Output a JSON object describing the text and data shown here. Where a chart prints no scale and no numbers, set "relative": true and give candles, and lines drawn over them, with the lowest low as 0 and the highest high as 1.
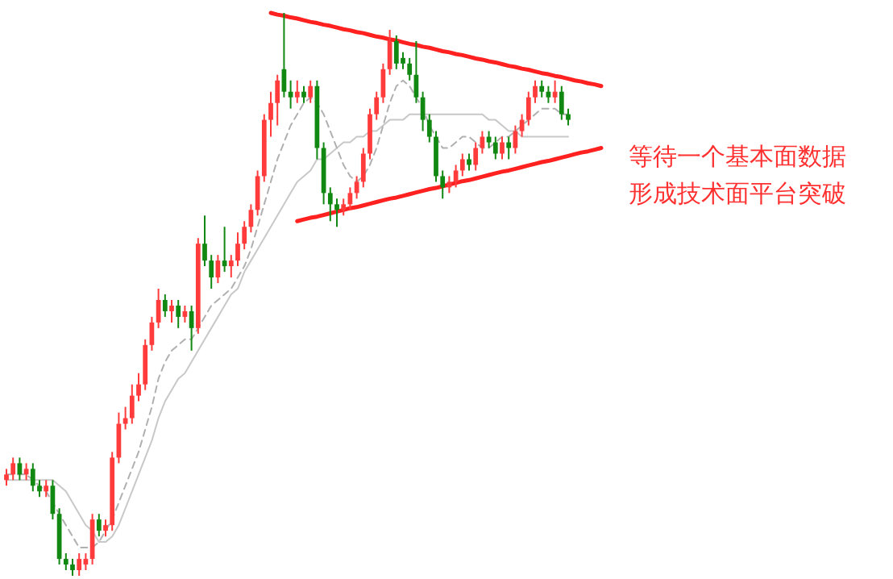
{
  "chart_data": {
    "type": "candlestick",
    "relative": true,
    "categories": [
      null,
      null,
      null,
      null,
      null,
      null,
      null,
      null,
      null,
      null,
      null,
      null,
      null,
      null,
      null,
      null,
      null,
      null,
      null,
      null,
      null,
      null,
      null,
      null,
      null,
      null,
      null,
      null,
      null,
      null,
      null,
      null,
      null,
      null,
      null,
      null,
      null,
      null,
      null,
      null,
      null,
      null,
      null,
      null,
      null,
      null,
      null,
      null,
      null,
      null,
      null,
      null,
      null,
      null,
      null,
      null,
      null,
      null,
      null,
      null,
      null,
      null,
      null,
      null,
      null,
      null,
      null,
      null,
      null,
      null,
      null,
      null,
      null,
      null,
      null,
      null,
      null,
      null,
      null,
      null,
      null,
      null,
      null,
      null,
      null,
      null,
      null,
      null,
      null,
      null,
      null
    ],
    "ohlc": [
      [
        0.17,
        0.19,
        0.16,
        0.18
      ],
      [
        0.18,
        0.21,
        0.17,
        0.2
      ],
      [
        0.2,
        0.21,
        0.17,
        0.18
      ],
      [
        0.18,
        0.2,
        0.17,
        0.19
      ],
      [
        0.19,
        0.2,
        0.15,
        0.16
      ],
      [
        0.16,
        0.17,
        0.14,
        0.15
      ],
      [
        0.15,
        0.17,
        0.14,
        0.16
      ],
      [
        0.16,
        0.17,
        0.1,
        0.11
      ],
      [
        0.11,
        0.12,
        0.02,
        0.03
      ],
      [
        0.03,
        0.04,
        0.01,
        0.02
      ],
      [
        0.02,
        0.03,
        0.0,
        0.01
      ],
      [
        0.01,
        0.04,
        0.0,
        0.03
      ],
      [
        0.02,
        0.04,
        0.01,
        0.03
      ],
      [
        0.03,
        0.11,
        0.02,
        0.1
      ],
      [
        0.1,
        0.11,
        0.07,
        0.08
      ],
      [
        0.08,
        0.1,
        0.07,
        0.09
      ],
      [
        0.09,
        0.22,
        0.08,
        0.21
      ],
      [
        0.21,
        0.29,
        0.2,
        0.27
      ],
      [
        0.27,
        0.3,
        0.26,
        0.28
      ],
      [
        0.28,
        0.34,
        0.27,
        0.32
      ],
      [
        0.32,
        0.36,
        0.31,
        0.34
      ],
      [
        0.34,
        0.42,
        0.33,
        0.41
      ],
      [
        0.41,
        0.46,
        0.4,
        0.45
      ],
      [
        0.45,
        0.51,
        0.44,
        0.49
      ],
      [
        0.49,
        0.5,
        0.46,
        0.47
      ],
      [
        0.47,
        0.49,
        0.45,
        0.48
      ],
      [
        0.48,
        0.49,
        0.44,
        0.46
      ],
      [
        0.46,
        0.48,
        0.45,
        0.47
      ],
      [
        0.47,
        0.48,
        0.4,
        0.44
      ],
      [
        0.44,
        0.6,
        0.43,
        0.59
      ],
      [
        0.59,
        0.64,
        0.55,
        0.56
      ],
      [
        0.56,
        0.57,
        0.51,
        0.53
      ],
      [
        0.53,
        0.57,
        0.52,
        0.56
      ],
      [
        0.56,
        0.62,
        0.54,
        0.55
      ],
      [
        0.55,
        0.57,
        0.53,
        0.56
      ],
      [
        0.56,
        0.61,
        0.55,
        0.59
      ],
      [
        0.59,
        0.63,
        0.58,
        0.62
      ],
      [
        0.62,
        0.66,
        0.61,
        0.65
      ],
      [
        0.65,
        0.72,
        0.64,
        0.71
      ],
      [
        0.71,
        0.82,
        0.7,
        0.81
      ],
      [
        0.81,
        0.86,
        0.78,
        0.84
      ],
      [
        0.84,
        0.89,
        0.8,
        0.88
      ],
      [
        0.9,
        1.0,
        0.85,
        0.86
      ],
      [
        0.86,
        0.88,
        0.83,
        0.85
      ],
      [
        0.85,
        0.88,
        0.84,
        0.86
      ],
      [
        0.86,
        0.87,
        0.84,
        0.85
      ],
      [
        0.85,
        0.88,
        0.84,
        0.87
      ],
      [
        0.87,
        0.88,
        0.74,
        0.76
      ],
      [
        0.76,
        0.77,
        0.66,
        0.68
      ],
      [
        0.68,
        0.69,
        0.63,
        0.66
      ],
      [
        0.66,
        0.67,
        0.62,
        0.65
      ],
      [
        0.65,
        0.67,
        0.64,
        0.66
      ],
      [
        0.66,
        0.69,
        0.65,
        0.68
      ],
      [
        0.68,
        0.71,
        0.67,
        0.7
      ],
      [
        0.7,
        0.76,
        0.69,
        0.75
      ],
      [
        0.75,
        0.83,
        0.74,
        0.82
      ],
      [
        0.82,
        0.86,
        0.81,
        0.85
      ],
      [
        0.85,
        0.91,
        0.84,
        0.9
      ],
      [
        0.9,
        0.97,
        0.89,
        0.95
      ],
      [
        0.95,
        0.96,
        0.9,
        0.91
      ],
      [
        0.92,
        0.93,
        0.9,
        0.91
      ],
      [
        0.91,
        0.92,
        0.88,
        0.89
      ],
      [
        0.89,
        0.95,
        0.84,
        0.85
      ],
      [
        0.85,
        0.86,
        0.79,
        0.81
      ],
      [
        0.81,
        0.82,
        0.77,
        0.78
      ],
      [
        0.78,
        0.79,
        0.7,
        0.71
      ],
      [
        0.71,
        0.72,
        0.67,
        0.69
      ],
      [
        0.69,
        0.71,
        0.68,
        0.7
      ],
      [
        0.7,
        0.73,
        0.69,
        0.72
      ],
      [
        0.72,
        0.75,
        0.71,
        0.74
      ],
      [
        0.74,
        0.75,
        0.72,
        0.73
      ],
      [
        0.73,
        0.77,
        0.72,
        0.76
      ],
      [
        0.76,
        0.79,
        0.75,
        0.78
      ],
      [
        0.78,
        0.79,
        0.76,
        0.77
      ],
      [
        0.77,
        0.78,
        0.74,
        0.75
      ],
      [
        0.75,
        0.78,
        0.74,
        0.77
      ],
      [
        0.77,
        0.78,
        0.74,
        0.76
      ],
      [
        0.76,
        0.8,
        0.75,
        0.79
      ],
      [
        0.79,
        0.82,
        0.78,
        0.81
      ],
      [
        0.81,
        0.86,
        0.8,
        0.85
      ],
      [
        0.85,
        0.88,
        0.84,
        0.87
      ],
      [
        0.87,
        0.88,
        0.85,
        0.86
      ],
      [
        0.86,
        0.87,
        0.84,
        0.85
      ],
      [
        0.85,
        0.88,
        0.84,
        0.86
      ],
      [
        0.86,
        0.87,
        0.81,
        0.82
      ],
      [
        0.82,
        0.83,
        0.8,
        0.81
      ],
      null,
      null,
      null,
      null,
      null
    ],
    "colors": [
      "#ff3b3b",
      "#ff3b3b",
      "#118811",
      "#ff3b3b",
      "#118811",
      "#118811",
      "#ff3b3b",
      "#118811",
      "#118811",
      "#118811",
      "#118811",
      "#ff3b3b",
      "#ff3b3b",
      "#ff3b3b",
      "#118811",
      "#ff3b3b",
      "#ff3b3b",
      "#ff3b3b",
      "#ff3b3b",
      "#ff3b3b",
      "#ff3b3b",
      "#ff3b3b",
      "#ff3b3b",
      "#ff3b3b",
      "#118811",
      "#ff3b3b",
      "#118811",
      "#ff3b3b",
      "#118811",
      "#ff3b3b",
      "#118811",
      "#118811",
      "#ff3b3b",
      "#118811",
      "#ff3b3b",
      "#ff3b3b",
      "#ff3b3b",
      "#ff3b3b",
      "#ff3b3b",
      "#ff3b3b",
      "#ff3b3b",
      "#ff3b3b",
      "#118811",
      "#118811",
      "#ff3b3b",
      "#118811",
      "#ff3b3b",
      "#118811",
      "#118811",
      "#118811",
      "#118811",
      "#ff3b3b",
      "#ff3b3b",
      "#ff3b3b",
      "#ff3b3b",
      "#ff3b3b",
      "#ff3b3b",
      "#ff3b3b",
      "#ff3b3b",
      "#118811",
      "#118811",
      "#118811",
      "#118811",
      "#118811",
      "#118811",
      "#118811",
      "#118811",
      "#ff3b3b",
      "#ff3b3b",
      "#ff3b3b",
      "#118811",
      "#ff3b3b",
      "#ff3b3b",
      "#118811",
      "#118811",
      "#ff3b3b",
      "#118811",
      "#ff3b3b",
      "#ff3b3b",
      "#ff3b3b",
      "#ff3b3b",
      "#118811",
      "#118811",
      "#ff3b3b",
      "#118811",
      "#118811",
      null,
      null,
      null,
      null,
      null
    ],
    "series": [
      {
        "type": "line",
        "line_style": "solid",
        "color": "#c8c8c8",
        "values": [
          0.17,
          0.17,
          0.17,
          0.17,
          0.17,
          0.17,
          0.17,
          0.17,
          0.16,
          0.15,
          0.13,
          0.11,
          0.09,
          0.08,
          0.06,
          0.06,
          0.07,
          0.09,
          0.12,
          0.15,
          0.18,
          0.21,
          0.24,
          0.28,
          0.31,
          0.33,
          0.35,
          0.36,
          0.38,
          0.4,
          0.42,
          0.44,
          0.46,
          0.48,
          0.5,
          0.51,
          0.54,
          0.56,
          0.58,
          0.6,
          0.62,
          0.64,
          0.66,
          0.68,
          0.7,
          0.71,
          0.72,
          0.74,
          0.74,
          0.75,
          0.76,
          0.77,
          0.77,
          0.78,
          0.78,
          0.79,
          0.79,
          0.8,
          0.81,
          0.81,
          0.81,
          0.82,
          0.82,
          0.82,
          0.82,
          0.82,
          0.82,
          0.82,
          0.82,
          0.82,
          0.82,
          0.82,
          0.82,
          0.81,
          0.81,
          0.8,
          0.79,
          0.79,
          0.78,
          0.78,
          0.78,
          0.78,
          0.78,
          0.78,
          0.78,
          0.78,
          null,
          null,
          null,
          null,
          null
        ]
      },
      {
        "type": "line",
        "line_style": "dashed",
        "color": "#b0b0b0",
        "values": [
          0.18,
          0.18,
          0.18,
          0.18,
          0.17,
          0.16,
          0.15,
          0.13,
          0.11,
          0.09,
          0.07,
          0.05,
          0.05,
          0.05,
          0.06,
          0.08,
          0.1,
          0.13,
          0.16,
          0.19,
          0.22,
          0.26,
          0.3,
          0.35,
          0.38,
          0.4,
          0.41,
          0.42,
          0.42,
          0.44,
          0.46,
          0.48,
          0.49,
          0.5,
          0.51,
          0.53,
          0.55,
          0.58,
          0.62,
          0.66,
          0.7,
          0.74,
          0.77,
          0.8,
          0.82,
          0.84,
          0.85,
          0.84,
          0.82,
          0.79,
          0.76,
          0.73,
          0.71,
          0.7,
          0.71,
          0.73,
          0.76,
          0.8,
          0.84,
          0.87,
          0.88,
          0.87,
          0.85,
          0.83,
          0.8,
          0.78,
          0.76,
          0.76,
          0.77,
          0.78,
          0.78,
          0.77,
          0.76,
          0.76,
          0.77,
          0.78,
          0.78,
          0.79,
          0.8,
          0.81,
          0.82,
          0.83,
          0.83,
          0.83,
          0.82,
          0.82,
          null,
          null,
          null,
          null,
          null
        ]
      },
      {
        "type": "line",
        "line_style": "solid",
        "color": "#ff2020",
        "values": [
          null,
          null,
          null,
          null,
          null,
          null,
          null,
          null,
          null,
          null,
          null,
          null,
          null,
          null,
          null,
          null,
          null,
          null,
          null,
          null,
          null,
          null,
          null,
          null,
          null,
          null,
          null,
          null,
          null,
          null,
          null,
          null,
          null,
          null,
          null,
          null,
          null,
          null,
          null,
          null,
          1.0,
          0.997,
          0.995,
          0.992,
          0.99,
          0.987,
          0.984,
          0.982,
          0.979,
          0.977,
          0.974,
          0.971,
          0.969,
          0.966,
          0.964,
          0.961,
          0.958,
          0.956,
          0.953,
          0.951,
          0.948,
          0.945,
          0.943,
          0.94,
          0.938,
          0.935,
          0.932,
          0.93,
          0.927,
          0.925,
          0.922,
          0.919,
          0.917,
          0.914,
          0.912,
          0.909,
          0.906,
          0.904,
          0.901,
          0.899,
          0.896,
          0.893,
          0.891,
          0.888,
          0.886,
          0.883,
          0.88,
          0.878,
          0.875,
          0.873,
          0.87
        ]
      },
      {
        "type": "line",
        "line_style": "solid",
        "color": "#ff2020",
        "values": [
          null,
          null,
          null,
          null,
          null,
          null,
          null,
          null,
          null,
          null,
          null,
          null,
          null,
          null,
          null,
          null,
          null,
          null,
          null,
          null,
          null,
          null,
          null,
          null,
          null,
          null,
          null,
          null,
          null,
          null,
          null,
          null,
          null,
          null,
          null,
          null,
          null,
          null,
          null,
          null,
          null,
          null,
          null,
          null,
          0.63,
          0.633,
          0.636,
          0.638,
          0.641,
          0.644,
          0.647,
          0.65,
          0.653,
          0.655,
          0.658,
          0.661,
          0.664,
          0.667,
          0.67,
          0.672,
          0.675,
          0.678,
          0.681,
          0.684,
          0.687,
          0.689,
          0.692,
          0.695,
          0.698,
          0.701,
          0.703,
          0.706,
          0.709,
          0.712,
          0.715,
          0.718,
          0.72,
          0.723,
          0.726,
          0.729,
          0.732,
          0.735,
          0.737,
          0.74,
          0.743,
          0.746,
          0.749,
          0.752,
          0.754,
          0.757,
          0.76
        ]
      }
    ],
    "annotations": [
      "等待一个基本面数据",
      "形成技术面平台突破"
    ]
  }
}
